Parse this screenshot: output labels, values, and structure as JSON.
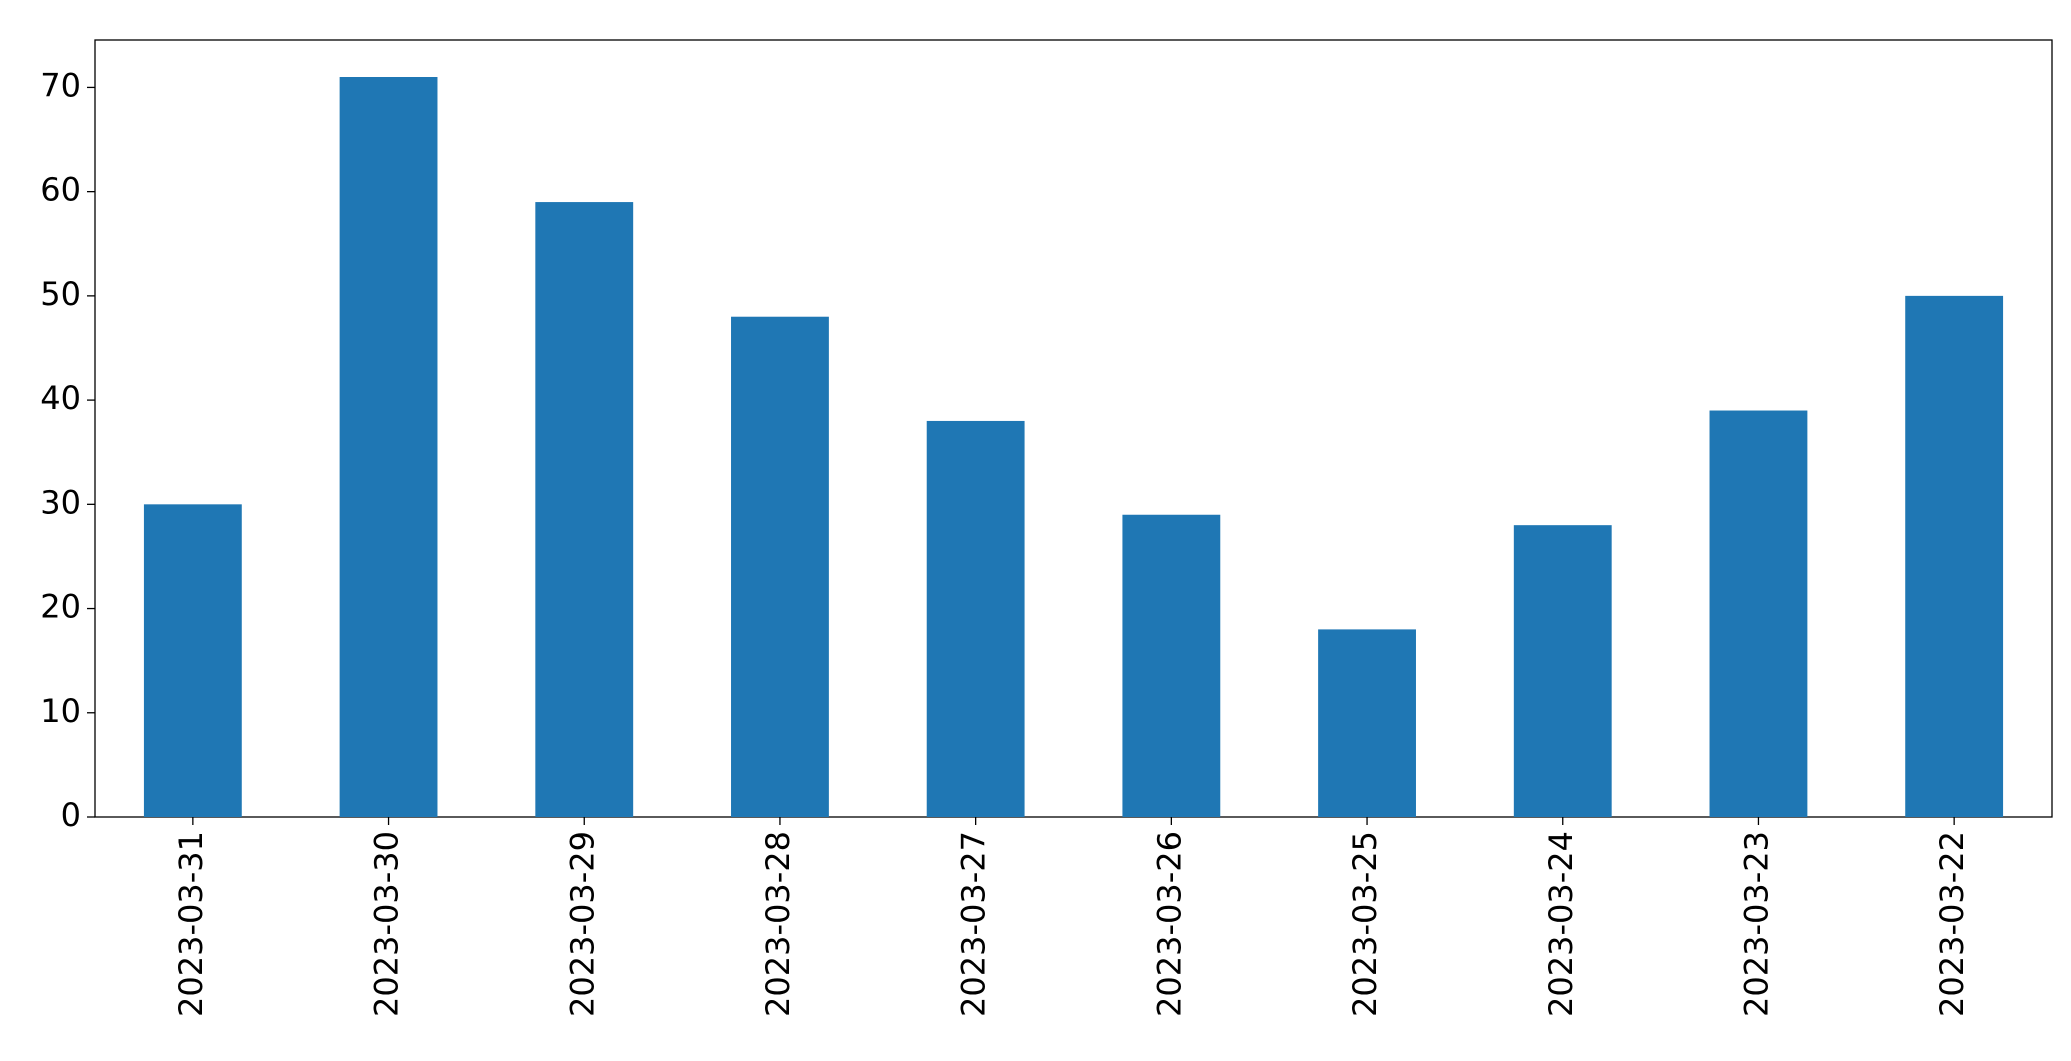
{
  "chart_data": {
    "type": "bar",
    "categories": [
      "2023-03-31",
      "2023-03-30",
      "2023-03-29",
      "2023-03-28",
      "2023-03-27",
      "2023-03-26",
      "2023-03-25",
      "2023-03-24",
      "2023-03-23",
      "2023-03-22"
    ],
    "values": [
      30,
      71,
      59,
      48,
      38,
      29,
      18,
      28,
      39,
      50
    ],
    "color": "#1f77b4",
    "ylim": [
      0,
      74.55
    ],
    "yticks": [
      0,
      10,
      20,
      30,
      40,
      50,
      60,
      70
    ],
    "grid": false
  }
}
